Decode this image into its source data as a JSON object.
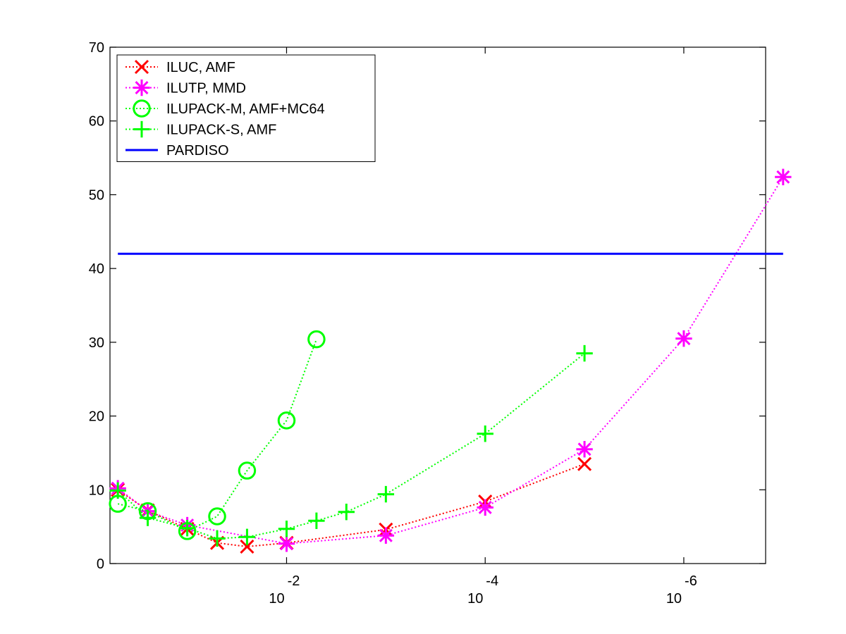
{
  "chart_data": {
    "type": "line",
    "title": "",
    "xlabel": "",
    "ylabel": "",
    "x_scale": "log",
    "x_reversed": true,
    "xlim": [
      0.6,
      1.5e-07
    ],
    "ylim": [
      0,
      70
    ],
    "grid": false,
    "legend_position": "top-left",
    "y_ticks": [
      0,
      10,
      20,
      30,
      40,
      50,
      60,
      70
    ],
    "y_tick_labels": [
      "0",
      "10",
      "20",
      "30",
      "40",
      "50",
      "60",
      "70"
    ],
    "x_ticks": [
      0.01,
      0.0001,
      1e-06
    ],
    "x_tick_labels": [
      {
        "base": "10",
        "exp": "-2"
      },
      {
        "base": "10",
        "exp": "-4"
      },
      {
        "base": "10",
        "exp": "-6"
      }
    ],
    "series": [
      {
        "name": "ILUC, AMF",
        "color": "#ff0000",
        "marker": "x",
        "line_style": "dotted",
        "x": [
          0.5,
          0.25,
          0.1,
          0.05,
          0.025,
          0.01,
          0.001,
          0.0001,
          1e-05
        ],
        "y": [
          10.0,
          7.2,
          4.7,
          2.8,
          2.3,
          2.8,
          4.6,
          8.4,
          13.5
        ]
      },
      {
        "name": "ILUTP, MMD",
        "color": "#ff00ff",
        "marker": "asterisk",
        "line_style": "dotted",
        "x": [
          0.5,
          0.25,
          0.1,
          0.01,
          0.001,
          0.0001,
          1e-05,
          1e-06,
          1e-07
        ],
        "y": [
          10.2,
          7.1,
          5.2,
          2.7,
          3.8,
          7.6,
          15.5,
          30.5,
          52.4
        ]
      },
      {
        "name": "ILUPACK-M, AMF+MC64",
        "color": "#00ff00",
        "marker": "circle",
        "line_style": "dotted",
        "x": [
          0.5,
          0.25,
          0.1,
          0.05,
          0.025,
          0.01,
          0.005
        ],
        "y": [
          8.1,
          7.1,
          4.4,
          6.4,
          12.6,
          19.4,
          30.4
        ]
      },
      {
        "name": "ILUPACK-S, AMF",
        "color": "#00ff00",
        "marker": "plus",
        "line_style": "dotted",
        "x": [
          0.5,
          0.25,
          0.1,
          0.05,
          0.025,
          0.01,
          0.005,
          0.0025,
          0.001,
          0.0001,
          1e-05
        ],
        "y": [
          9.9,
          6.2,
          4.8,
          3.4,
          3.6,
          4.7,
          5.8,
          7.0,
          9.4,
          17.6,
          28.5
        ]
      },
      {
        "name": "PARDISO",
        "color": "#0000ff",
        "marker": "none",
        "line_style": "solid",
        "x": [
          0.5,
          1e-07
        ],
        "y": [
          42,
          42
        ]
      }
    ]
  }
}
